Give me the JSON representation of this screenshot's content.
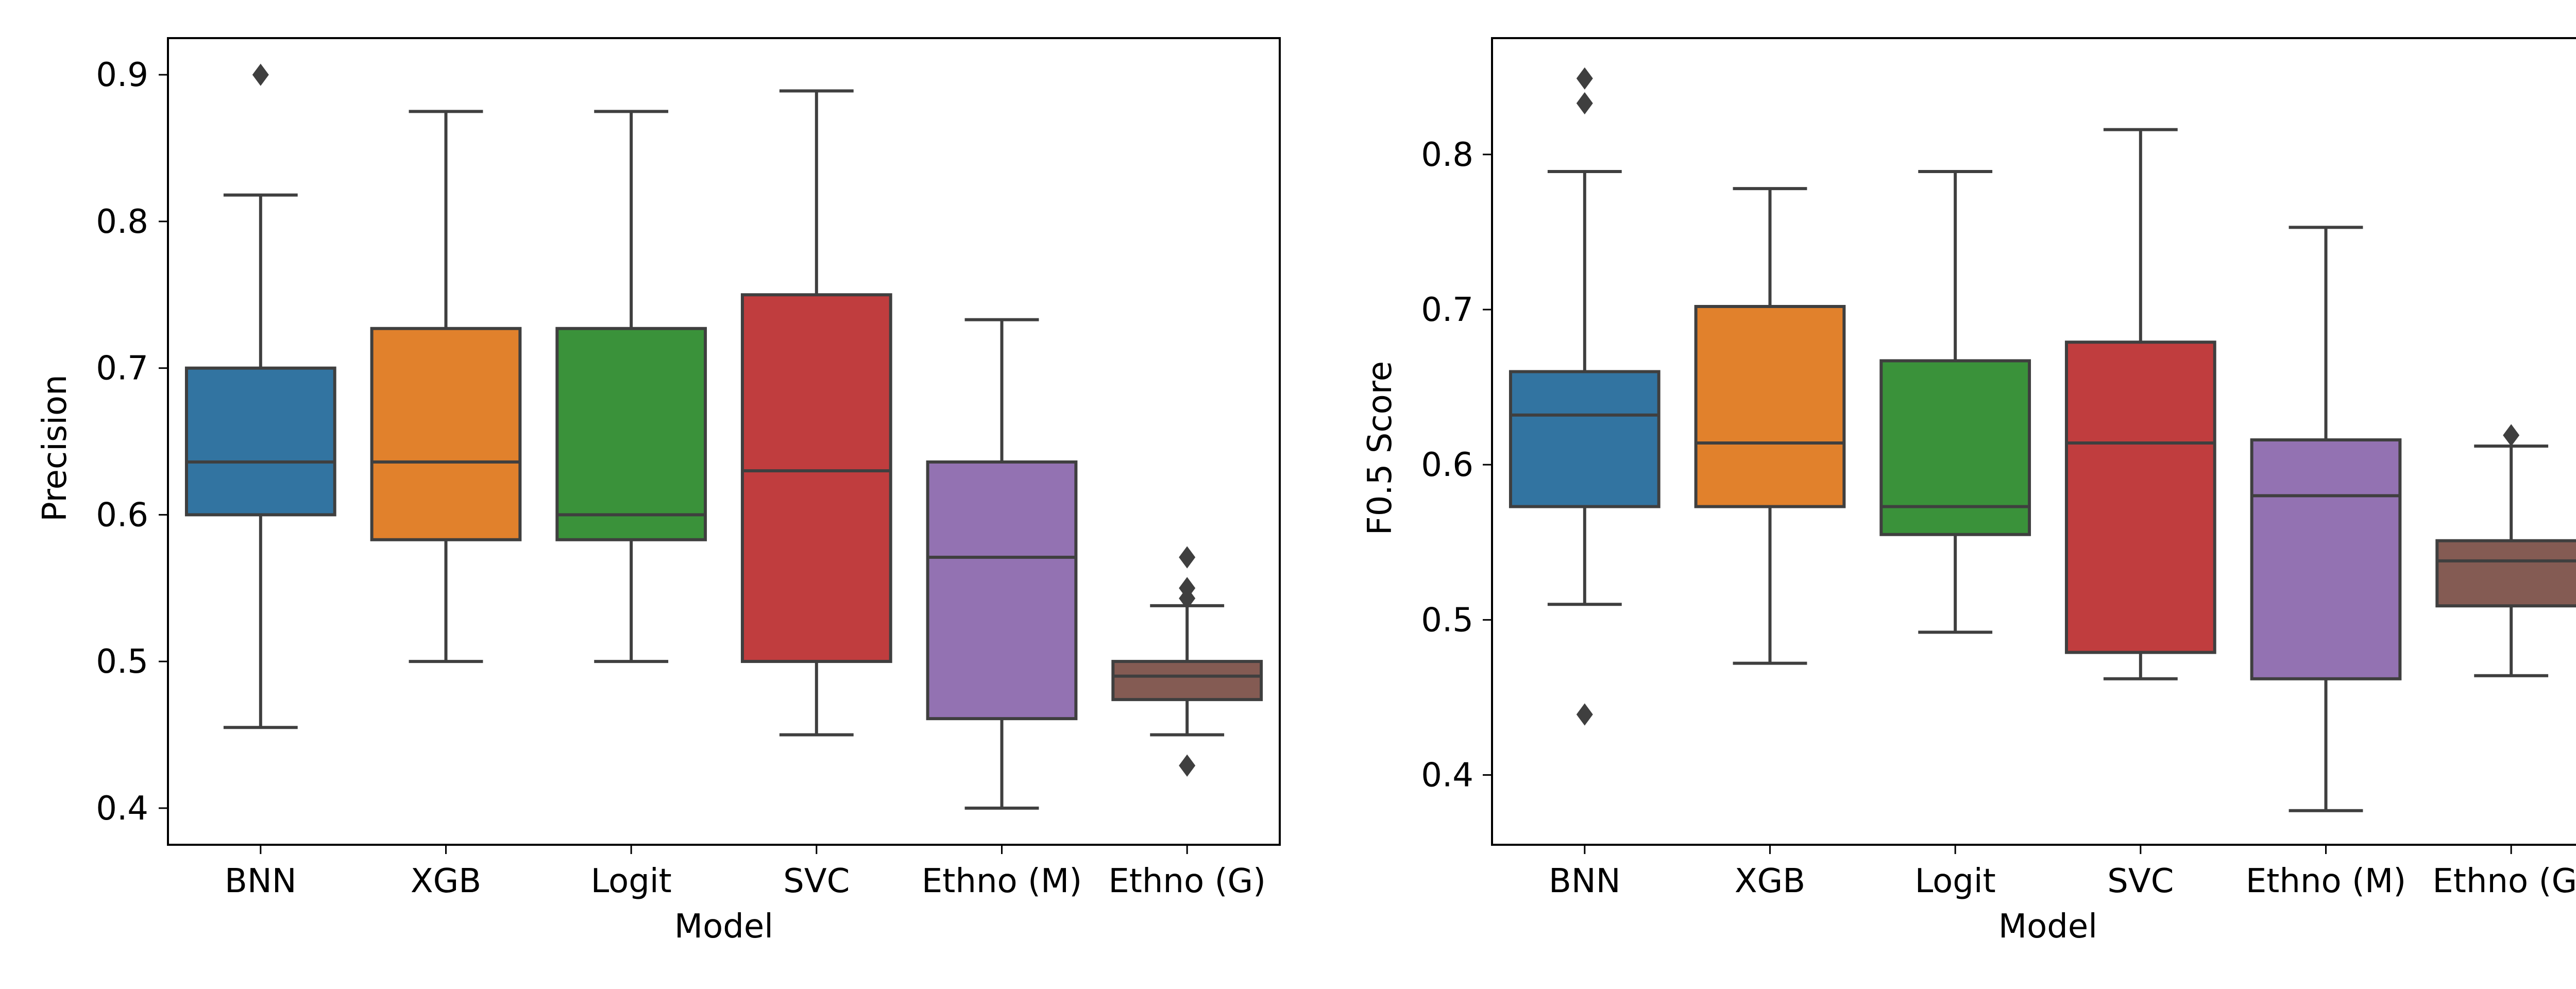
{
  "chart_data": [
    {
      "type": "box",
      "xlabel": "Model",
      "ylabel": "Precision",
      "ylim": [
        0.375,
        0.925
      ],
      "yticks": [
        "0.4",
        "0.5",
        "0.6",
        "0.7",
        "0.8",
        "0.9"
      ],
      "categories": [
        "BNN",
        "XGB",
        "Logit",
        "SVC",
        "Ethno (M)",
        "Ethno (G)"
      ],
      "colors": [
        "#3274a1",
        "#e1812c",
        "#3a923a",
        "#c03d3e",
        "#9372b2",
        "#845b53"
      ],
      "boxes": [
        {
          "whisker_low": 0.455,
          "q1": 0.6,
          "median": 0.636,
          "q3": 0.7,
          "whisker_high": 0.818,
          "outliers": [
            0.9
          ]
        },
        {
          "whisker_low": 0.5,
          "q1": 0.583,
          "median": 0.636,
          "q3": 0.727,
          "whisker_high": 0.875,
          "outliers": []
        },
        {
          "whisker_low": 0.5,
          "q1": 0.583,
          "median": 0.6,
          "q3": 0.727,
          "whisker_high": 0.875,
          "outliers": []
        },
        {
          "whisker_low": 0.45,
          "q1": 0.5,
          "median": 0.63,
          "q3": 0.75,
          "whisker_high": 0.889,
          "outliers": []
        },
        {
          "whisker_low": 0.4,
          "q1": 0.461,
          "median": 0.571,
          "q3": 0.636,
          "whisker_high": 0.733,
          "outliers": []
        },
        {
          "whisker_low": 0.45,
          "q1": 0.474,
          "median": 0.49,
          "q3": 0.5,
          "whisker_high": 0.538,
          "outliers": [
            0.571,
            0.55,
            0.543,
            0.429
          ]
        }
      ]
    },
    {
      "type": "box",
      "xlabel": "Model",
      "ylabel": "F0.5 Score",
      "ylim": [
        0.355,
        0.875
      ],
      "yticks": [
        "0.4",
        "0.5",
        "0.6",
        "0.7",
        "0.8"
      ],
      "categories": [
        "BNN",
        "XGB",
        "Logit",
        "SVC",
        "Ethno (M)",
        "Ethno (G)"
      ],
      "colors": [
        "#3274a1",
        "#e1812c",
        "#3a923a",
        "#c03d3e",
        "#9372b2",
        "#845b53"
      ],
      "boxes": [
        {
          "whisker_low": 0.51,
          "q1": 0.573,
          "median": 0.632,
          "q3": 0.66,
          "whisker_high": 0.789,
          "outliers": [
            0.849,
            0.833,
            0.439
          ]
        },
        {
          "whisker_low": 0.472,
          "q1": 0.573,
          "median": 0.614,
          "q3": 0.702,
          "whisker_high": 0.778,
          "outliers": []
        },
        {
          "whisker_low": 0.492,
          "q1": 0.555,
          "median": 0.573,
          "q3": 0.667,
          "whisker_high": 0.789,
          "outliers": []
        },
        {
          "whisker_low": 0.462,
          "q1": 0.479,
          "median": 0.614,
          "q3": 0.679,
          "whisker_high": 0.816,
          "outliers": []
        },
        {
          "whisker_low": 0.377,
          "q1": 0.462,
          "median": 0.58,
          "q3": 0.616,
          "whisker_high": 0.753,
          "outliers": []
        },
        {
          "whisker_low": 0.464,
          "q1": 0.509,
          "median": 0.538,
          "q3": 0.551,
          "whisker_high": 0.612,
          "outliers": [
            0.619
          ]
        }
      ]
    }
  ]
}
